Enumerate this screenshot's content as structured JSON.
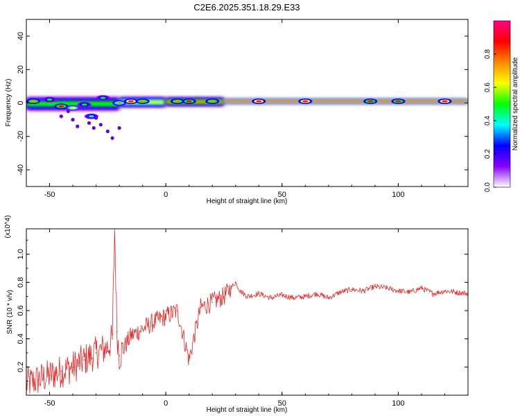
{
  "title": "C2E6.2025.351.18.29.E33",
  "chart_data": [
    {
      "type": "heatmap",
      "xlabel": "Height of straight line (km)",
      "ylabel": "Frequency (Hz)",
      "xlim": [
        -60,
        130
      ],
      "ylim": [
        -50,
        50
      ],
      "xticks": [
        -50,
        0,
        50,
        100
      ],
      "yticks": [
        -40,
        -20,
        0,
        20,
        40
      ],
      "colorbar": {
        "label": "Normalized spectral amplitude",
        "range": [
          0,
          1
        ],
        "ticks": [
          0.0,
          0.2,
          0.4,
          0.6,
          0.8
        ],
        "tick_labels": [
          "0.0",
          "0.2",
          "0.4",
          "0.6",
          "0.8"
        ],
        "colors": [
          "#ffffff",
          "#8800ff",
          "#0000ff",
          "#00ffff",
          "#00ff00",
          "#ffff00",
          "#ff8800",
          "#ff0000",
          "#ff0088"
        ]
      },
      "bands": [
        {
          "x0": -60,
          "x1": -20,
          "f_low": -4,
          "f_high": 3,
          "amplitude": 0.45
        },
        {
          "x0": -20,
          "x1": 0,
          "f_low": -1.5,
          "f_high": 2.5,
          "amplitude": 0.6
        },
        {
          "x0": 0,
          "x1": 25,
          "f_low": -1,
          "f_high": 2.5,
          "amplitude": 0.7
        },
        {
          "x0": 25,
          "x1": 130,
          "f_low": 0,
          "f_high": 2,
          "amplitude": 0.95
        }
      ],
      "blobs": [
        {
          "x": -57,
          "f": 1,
          "amplitude": 0.8
        },
        {
          "x": -50,
          "f": 2,
          "amplitude": 0.5
        },
        {
          "x": -45,
          "f": -2,
          "amplitude": 0.9
        },
        {
          "x": -40,
          "f": -3,
          "amplitude": 0.6
        },
        {
          "x": -35,
          "f": -1,
          "amplitude": 0.5
        },
        {
          "x": -32,
          "f": -8,
          "amplitude": 0.35
        },
        {
          "x": -27,
          "f": 3,
          "amplitude": 0.5
        },
        {
          "x": -20,
          "f": 0,
          "amplitude": 0.7
        },
        {
          "x": -15,
          "f": 1,
          "amplitude": 0.95
        },
        {
          "x": -10,
          "f": 1,
          "amplitude": 0.8
        },
        {
          "x": 5,
          "f": 1,
          "amplitude": 0.75
        },
        {
          "x": 10,
          "f": 1,
          "amplitude": 0.85
        },
        {
          "x": 20,
          "f": 1,
          "amplitude": 0.8
        },
        {
          "x": 40,
          "f": 1,
          "amplitude": 0.95
        },
        {
          "x": 60,
          "f": 1,
          "amplitude": 0.95
        },
        {
          "x": 88,
          "f": 1,
          "amplitude": 0.9
        },
        {
          "x": 100,
          "f": 1,
          "amplitude": 0.85
        },
        {
          "x": 120,
          "f": 1,
          "amplitude": 0.95
        }
      ],
      "scatter_points": [
        {
          "x": -45,
          "f": -8
        },
        {
          "x": -40,
          "f": -10
        },
        {
          "x": -38,
          "f": -14
        },
        {
          "x": -33,
          "f": -12
        },
        {
          "x": -31,
          "f": -15
        },
        {
          "x": -28,
          "f": -13
        },
        {
          "x": -25,
          "f": -17
        },
        {
          "x": -23,
          "f": -21
        },
        {
          "x": -20,
          "f": -15
        },
        {
          "x": -30,
          "f": -9
        },
        {
          "x": -42,
          "f": -5
        }
      ]
    },
    {
      "type": "line",
      "xlabel": "Height of straight line (km)",
      "ylabel": "SNR (10 * v/v)",
      "y_multiplier": "(x10^4)",
      "xlim": [
        -60,
        130
      ],
      "ylim": [
        0,
        1.18
      ],
      "xticks": [
        -50,
        0,
        50,
        100
      ],
      "yticks": [
        0.2,
        0.4,
        0.6,
        0.8,
        1.0
      ],
      "ytick_labels": [
        "0.2",
        "0.4",
        "0.6",
        "0.8",
        "1.0"
      ],
      "color": "#ee2222",
      "series": [
        {
          "name": "SNR",
          "x": [
            -60,
            -55,
            -50,
            -45,
            -40,
            -35,
            -30,
            -25,
            -23,
            -22,
            -21,
            -20,
            -15,
            -10,
            -5,
            0,
            5,
            10,
            15,
            20,
            25,
            28,
            30,
            32,
            35,
            40,
            45,
            50,
            55,
            60,
            65,
            70,
            75,
            80,
            85,
            90,
            95,
            100,
            105,
            110,
            115,
            120,
            125,
            130
          ],
          "y": [
            0.08,
            0.11,
            0.14,
            0.17,
            0.2,
            0.25,
            0.3,
            0.34,
            0.4,
            1.18,
            0.45,
            0.28,
            0.42,
            0.47,
            0.52,
            0.56,
            0.6,
            0.25,
            0.62,
            0.66,
            0.7,
            0.76,
            0.8,
            0.74,
            0.7,
            0.72,
            0.69,
            0.71,
            0.69,
            0.7,
            0.72,
            0.69,
            0.73,
            0.75,
            0.74,
            0.77,
            0.76,
            0.74,
            0.73,
            0.76,
            0.72,
            0.74,
            0.73,
            0.72
          ]
        }
      ]
    }
  ]
}
